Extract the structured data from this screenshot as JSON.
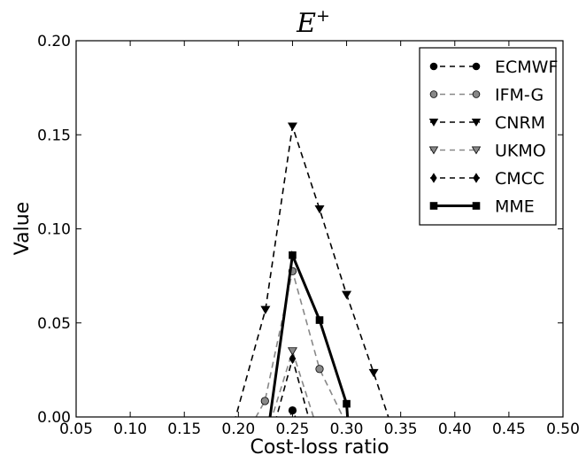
{
  "chart_data": {
    "type": "line",
    "title": {
      "main": "E",
      "superscript": "+"
    },
    "xlabel": "Cost-loss ratio",
    "ylabel": "Value",
    "xlim": [
      0.05,
      0.5
    ],
    "ylim": [
      0.0,
      0.2
    ],
    "xticks": [
      0.05,
      0.1,
      0.15,
      0.2,
      0.25,
      0.3,
      0.35,
      0.4,
      0.45,
      0.5
    ],
    "xtick_labels": [
      "0.05",
      "0.10",
      "0.15",
      "0.20",
      "0.25",
      "0.30",
      "0.35",
      "0.40",
      "0.45",
      "0.50"
    ],
    "yticks": [
      0.0,
      0.05,
      0.1,
      0.15,
      0.2
    ],
    "ytick_labels": [
      "0.00",
      "0.05",
      "0.10",
      "0.15",
      "0.20"
    ],
    "grid": false,
    "legend_position": "top-right",
    "series": [
      {
        "name": "ECMWF",
        "color": "#000000",
        "marker": "circle",
        "dash": "dashed",
        "points": [
          [
            0.225,
            -0.03
          ],
          [
            0.25,
            0.0035
          ],
          [
            0.275,
            -0.03
          ]
        ]
      },
      {
        "name": "IFM-G",
        "color": "#888888",
        "marker": "circle",
        "dash": "dashed",
        "points": [
          [
            0.187,
            -0.03
          ],
          [
            0.2245,
            0.0085
          ],
          [
            0.25,
            0.0775
          ],
          [
            0.275,
            0.0255
          ],
          [
            0.3,
            -0.004
          ]
        ]
      },
      {
        "name": "CNRM",
        "color": "#000000",
        "marker": "triangle-down",
        "dash": "dashed",
        "points": [
          [
            0.183,
            -0.03
          ],
          [
            0.225,
            0.057
          ],
          [
            0.25,
            0.1545
          ],
          [
            0.275,
            0.1105
          ],
          [
            0.3,
            0.065
          ],
          [
            0.325,
            0.0235
          ],
          [
            0.356,
            -0.03
          ]
        ]
      },
      {
        "name": "UKMO",
        "color": "#888888",
        "marker": "triangle-down",
        "dash": "dashed",
        "points": [
          [
            0.215,
            -0.03
          ],
          [
            0.25,
            0.035
          ],
          [
            0.286,
            -0.03
          ]
        ]
      },
      {
        "name": "CMCC",
        "color": "#000000",
        "marker": "diamond",
        "dash": "dashed",
        "points": [
          [
            0.221,
            -0.03
          ],
          [
            0.25,
            0.031
          ],
          [
            0.279,
            -0.03
          ]
        ]
      },
      {
        "name": "MME",
        "color": "#000000",
        "marker": "square",
        "dash": "solid",
        "points": [
          [
            0.222,
            -0.03
          ],
          [
            0.25,
            0.086
          ],
          [
            0.275,
            0.0515
          ],
          [
            0.3,
            0.007
          ],
          [
            0.3045,
            -0.03
          ]
        ]
      }
    ]
  }
}
